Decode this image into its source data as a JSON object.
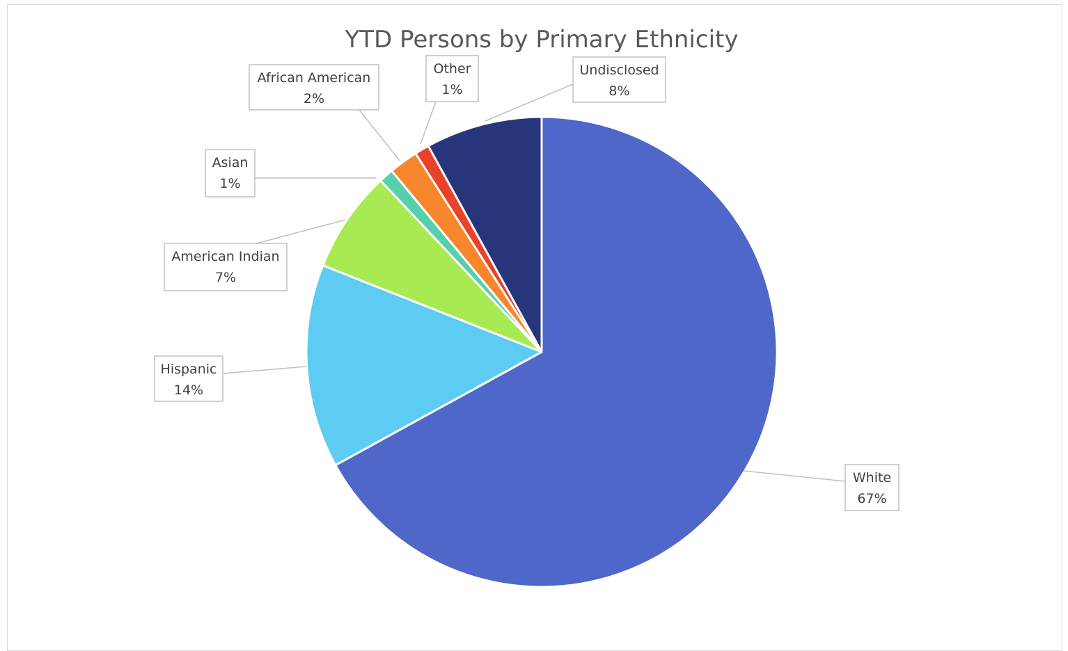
{
  "chart_data": {
    "type": "pie",
    "title": "YTD Persons by Primary Ethnicity",
    "start_angle_deg": 0,
    "direction": "clockwise",
    "slices": [
      {
        "name": "White",
        "value": 67,
        "label": "67%",
        "color": "#4f67c9"
      },
      {
        "name": "Hispanic",
        "value": 14,
        "label": "14%",
        "color": "#5ecbf2"
      },
      {
        "name": "American Indian",
        "value": 7,
        "label": "7%",
        "color": "#a8ea52"
      },
      {
        "name": "Asian",
        "value": 1,
        "label": "1%",
        "color": "#56cfab"
      },
      {
        "name": "African American",
        "value": 2,
        "label": "2%",
        "color": "#f7862c"
      },
      {
        "name": "Other",
        "value": 1,
        "label": "1%",
        "color": "#e8422a"
      },
      {
        "name": "Undisclosed",
        "value": 8,
        "label": "8%",
        "color": "#27367a"
      }
    ],
    "legend": "none",
    "data_labels": "callout"
  }
}
